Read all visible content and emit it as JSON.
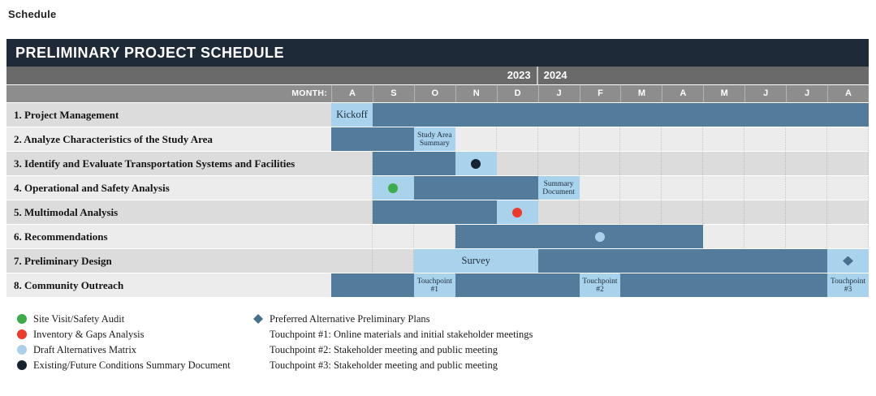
{
  "page": {
    "heading": "Schedule"
  },
  "header": {
    "title": "PRELIMINARY PROJECT SCHEDULE",
    "month_label": "MONTH:"
  },
  "colors": {
    "title_bar": "#1e2a38",
    "year_band": "#6a6a6a",
    "month_band": "#8d8d8d",
    "bar_dark": "#527b9c",
    "bar_light": "#a9d2ec",
    "row_odd": "#dcdcdc",
    "row_even": "#ececec",
    "green": "#3bad4a",
    "red": "#ee392d",
    "lightblue": "#abd0ec",
    "black": "#152230",
    "diamond": "#47708f"
  },
  "chart_data": {
    "type": "bar",
    "subtype": "gantt",
    "title": "PRELIMINARY PROJECT SCHEDULE",
    "x_axis": {
      "label": "MONTH:",
      "months": [
        "A",
        "S",
        "O",
        "N",
        "D",
        "J",
        "F",
        "M",
        "A",
        "M",
        "J",
        "J",
        "A"
      ],
      "years": [
        {
          "label": "2023",
          "cols": 5
        },
        {
          "label": "2024",
          "cols": 8
        }
      ]
    },
    "tasks": [
      {
        "name": "1. Project Management",
        "segments": [
          {
            "start": 0,
            "end": 1,
            "style": "light",
            "label": "Kickoff",
            "label_size": "md"
          },
          {
            "start": 1,
            "end": 13,
            "style": "dark"
          }
        ]
      },
      {
        "name": "2. Analyze Characteristics of the Study Area",
        "segments": [
          {
            "start": 0,
            "end": 2,
            "style": "dark"
          },
          {
            "start": 2,
            "end": 3,
            "style": "light",
            "label": "Study Area Summary",
            "label_size": "sm"
          }
        ]
      },
      {
        "name": "3. Identify and Evaluate Transportation Systems and Facilities",
        "segments": [
          {
            "start": 1,
            "end": 3,
            "style": "dark"
          },
          {
            "start": 3,
            "end": 4,
            "style": "light",
            "marker": "black"
          }
        ]
      },
      {
        "name": "4. Operational and Safety Analysis",
        "segments": [
          {
            "start": 1,
            "end": 2,
            "style": "light",
            "marker": "green"
          },
          {
            "start": 2,
            "end": 5,
            "style": "dark"
          },
          {
            "start": 5,
            "end": 6,
            "style": "light",
            "label": "Summary Document",
            "label_size": "sm"
          }
        ]
      },
      {
        "name": "5. Multimodal Analysis",
        "segments": [
          {
            "start": 1,
            "end": 4,
            "style": "dark"
          },
          {
            "start": 4,
            "end": 5,
            "style": "light",
            "marker": "red"
          }
        ]
      },
      {
        "name": "6. Recommendations",
        "segments": [
          {
            "start": 3,
            "end": 9,
            "style": "dark"
          }
        ],
        "markers": [
          {
            "col": 6,
            "type": "lightblue"
          }
        ]
      },
      {
        "name": "7. Preliminary Design",
        "segments": [
          {
            "start": 2,
            "end": 5,
            "style": "light",
            "label": "Survey",
            "label_size": "md"
          },
          {
            "start": 5,
            "end": 12,
            "style": "dark"
          },
          {
            "start": 12,
            "end": 13,
            "style": "light",
            "marker": "diamond"
          }
        ]
      },
      {
        "name": "8. Community Outreach",
        "segments": [
          {
            "start": 0,
            "end": 2,
            "style": "dark"
          },
          {
            "start": 2,
            "end": 3,
            "style": "light",
            "label": "Touchpoint #1",
            "label_size": "sm"
          },
          {
            "start": 3,
            "end": 6,
            "style": "dark"
          },
          {
            "start": 6,
            "end": 7,
            "style": "light",
            "label": "Touchpoint #2",
            "label_size": "sm"
          },
          {
            "start": 7,
            "end": 12,
            "style": "dark"
          },
          {
            "start": 12,
            "end": 13,
            "style": "light",
            "label": "Touchpoint #3",
            "label_size": "sm"
          }
        ]
      }
    ],
    "legend": {
      "left": [
        {
          "marker": "green",
          "label": "Site Visit/Safety Audit"
        },
        {
          "marker": "red",
          "label": "Inventory & Gaps Analysis"
        },
        {
          "marker": "lightblue",
          "label": "Draft Alternatives Matrix"
        },
        {
          "marker": "black",
          "label": "Existing/Future Conditions Summary Document"
        }
      ],
      "right": [
        {
          "marker": "diamond",
          "label": "Preferred Alternative Preliminary Plans"
        },
        {
          "marker": null,
          "label": "Touchpoint #1: Online materials and initial stakeholder meetings"
        },
        {
          "marker": null,
          "label": "Touchpoint #2: Stakeholder meeting and public meeting"
        },
        {
          "marker": null,
          "label": "Touchpoint #3: Stakeholder meeting and public meeting"
        }
      ]
    }
  }
}
